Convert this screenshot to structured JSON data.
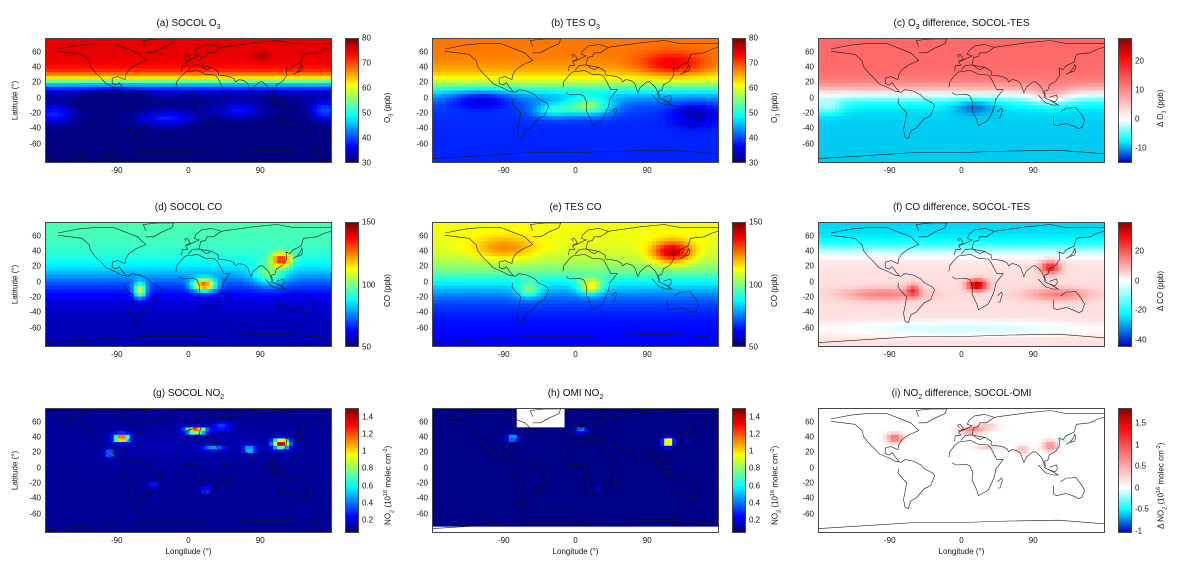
{
  "chart_data": [
    {
      "id": "a",
      "type": "heatmap",
      "title": "(a) SOCOL O3",
      "ylabel": "Latitude (°)",
      "xlabel": "",
      "colorbar_label": "O3 (ppb)",
      "colorbar_ticks": [
        "80",
        "70",
        "60",
        "50",
        "40",
        "30"
      ],
      "clim": [
        30,
        80
      ],
      "x_ticks": [
        "-90",
        "0",
        "90"
      ],
      "y_ticks": [
        "60",
        "40",
        "20",
        "0",
        "-20",
        "-40",
        "-60"
      ],
      "colormap": "jet",
      "pattern": "o3_model"
    },
    {
      "id": "b",
      "type": "heatmap",
      "title": "(b) TES O3",
      "ylabel": "",
      "xlabel": "",
      "colorbar_label": "O3 (ppb)",
      "colorbar_ticks": [
        "80",
        "70",
        "60",
        "50",
        "40",
        "30"
      ],
      "clim": [
        30,
        80
      ],
      "x_ticks": [
        "-90",
        "0",
        "90"
      ],
      "y_ticks": [
        "60",
        "40",
        "20",
        "0",
        "-20",
        "-40",
        "-60"
      ],
      "colormap": "jet",
      "pattern": "o3_obs"
    },
    {
      "id": "c",
      "type": "heatmap",
      "title": "(c) O3 difference, SOCOL-TES",
      "ylabel": "",
      "xlabel": "",
      "colorbar_label": "Δ O3 (ppb)",
      "colorbar_ticks": [
        "20",
        "10",
        "0",
        "-10"
      ],
      "clim": [
        -15,
        28
      ],
      "x_ticks": [
        "-90",
        "0",
        "90"
      ],
      "y_ticks": [
        "60",
        "40",
        "20",
        "0",
        "-20",
        "-40",
        "-60"
      ],
      "colormap": "diverging",
      "pattern": "o3_diff"
    },
    {
      "id": "d",
      "type": "heatmap",
      "title": "(d) SOCOL CO",
      "ylabel": "Latitude (°)",
      "xlabel": "",
      "colorbar_label": "CO (ppb)",
      "colorbar_ticks": [
        "150",
        "100",
        "50"
      ],
      "clim": [
        50,
        150
      ],
      "x_ticks": [
        "-90",
        "0",
        "90"
      ],
      "y_ticks": [
        "60",
        "40",
        "20",
        "0",
        "-20",
        "-40",
        "-60"
      ],
      "colormap": "jet",
      "pattern": "co_model"
    },
    {
      "id": "e",
      "type": "heatmap",
      "title": "(e) TES CO",
      "ylabel": "",
      "xlabel": "",
      "colorbar_label": "CO (ppb)",
      "colorbar_ticks": [
        "150",
        "100",
        "50"
      ],
      "clim": [
        50,
        150
      ],
      "x_ticks": [
        "-90",
        "0",
        "90"
      ],
      "y_ticks": [
        "60",
        "40",
        "20",
        "0",
        "-20",
        "-40",
        "-60"
      ],
      "colormap": "jet",
      "pattern": "co_obs"
    },
    {
      "id": "f",
      "type": "heatmap",
      "title": "(f) CO difference, SOCOL-TES",
      "ylabel": "",
      "xlabel": "",
      "colorbar_label": "Δ CO (ppb)",
      "colorbar_ticks": [
        "20",
        "0",
        "-20",
        "-40"
      ],
      "clim": [
        -45,
        40
      ],
      "x_ticks": [
        "-90",
        "0",
        "90"
      ],
      "y_ticks": [
        "60",
        "40",
        "20",
        "0",
        "-20",
        "-40",
        "-60"
      ],
      "colormap": "diverging",
      "pattern": "co_diff"
    },
    {
      "id": "g",
      "type": "heatmap",
      "title": "(g) SOCOL NO2",
      "ylabel": "Latitude (°)",
      "xlabel": "Longitude (°)",
      "colorbar_label": "NO2 (10^16 molec cm^-2)",
      "colorbar_ticks": [
        "1.4",
        "1.2",
        "1",
        "0.8",
        "0.6",
        "0.4",
        "0.2"
      ],
      "clim": [
        0.05,
        1.5
      ],
      "x_ticks": [
        "-90",
        "0",
        "90"
      ],
      "y_ticks": [
        "60",
        "40",
        "20",
        "0",
        "-20",
        "-40",
        "-60"
      ],
      "colormap": "jet",
      "pattern": "no2_model"
    },
    {
      "id": "h",
      "type": "heatmap",
      "title": "(h) OMI NO2",
      "ylabel": "",
      "xlabel": "Longitude (°)",
      "colorbar_label": "NO2 (10^16 molec cm^-2)",
      "colorbar_ticks": [
        "1.4",
        "1.2",
        "1",
        "0.8",
        "0.6",
        "0.4",
        "0.2"
      ],
      "clim": [
        0.05,
        1.5
      ],
      "x_ticks": [
        "-90",
        "0",
        "90"
      ],
      "y_ticks": [
        "60",
        "40",
        "20",
        "0",
        "-20",
        "-40",
        "-60"
      ],
      "colormap": "jet",
      "pattern": "no2_obs"
    },
    {
      "id": "i",
      "type": "heatmap",
      "title": "(i) NO2 difference, SOCOL-OMI",
      "ylabel": "",
      "xlabel": "Longitude (°)",
      "colorbar_label": "Δ NO2 (10^16 molec cm^-2)",
      "colorbar_ticks": [
        "1.5",
        "1",
        "0.5",
        "0",
        "-0.5",
        "-1"
      ],
      "clim": [
        -1.05,
        1.85
      ],
      "x_ticks": [
        "-90",
        "0",
        "90"
      ],
      "y_ticks": [
        "60",
        "40",
        "20",
        "0",
        "-20",
        "-40",
        "-60"
      ],
      "colormap": "diverging",
      "pattern": "no2_diff"
    }
  ],
  "colors": {
    "frame": "#444444",
    "coast": "#1a1a1a"
  }
}
